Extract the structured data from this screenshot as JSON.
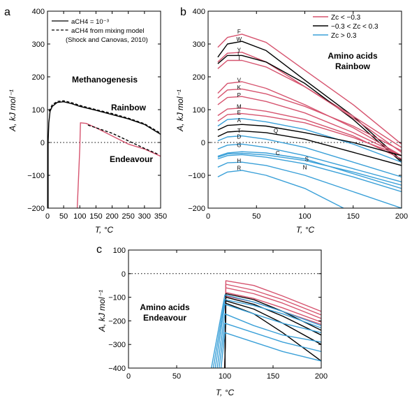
{
  "colors": {
    "red": "#d6546f",
    "black": "#000000",
    "blue": "#3aa0d8"
  },
  "chart_data": [
    {
      "panel": "a",
      "type": "line",
      "title": "Methanogenesis",
      "xlabel": "T, °C",
      "ylabel": "A, kJ mol⁻¹",
      "xlim": [
        0,
        350
      ],
      "ylim": [
        -200,
        400
      ],
      "xticks": [
        0,
        50,
        100,
        150,
        200,
        250,
        300,
        350
      ],
      "yticks": [
        -200,
        -100,
        0,
        100,
        200,
        300,
        400
      ],
      "zero_line": "dotted",
      "legend": {
        "placement": "top-left",
        "entries": [
          {
            "label": "aCH4 = 10⁻³",
            "style": "solid"
          },
          {
            "label": "aCH4 from mixing model",
            "style": "dashed"
          },
          {
            "label": "(Shock and Canovas, 2010)",
            "style": "none"
          }
        ]
      },
      "labels": [
        {
          "text": "Rainbow",
          "x": 225,
          "y": 157
        },
        {
          "text": "Endeavour",
          "x": 255,
          "y": -56
        }
      ],
      "series": [
        {
          "name": "Rainbow",
          "color": "black",
          "style": "solid",
          "x": [
            2,
            2,
            4,
            8,
            15,
            30,
            50,
            75,
            100,
            150,
            200,
            250,
            300,
            350
          ],
          "y": [
            -200,
            0,
            60,
            95,
            110,
            122,
            124,
            118,
            110,
            98,
            85,
            72,
            55,
            25
          ]
        },
        {
          "name": "Rainbow mixing",
          "color": "black",
          "style": "dashed",
          "x": [
            5,
            15,
            30,
            50,
            75,
            100,
            150,
            200,
            250,
            300,
            350
          ],
          "y": [
            95,
            115,
            125,
            127,
            121,
            113,
            100,
            88,
            74,
            57,
            28
          ]
        },
        {
          "name": "Endeavour",
          "color": "red",
          "style": "solid",
          "x": [
            92,
            100,
            102,
            120,
            150,
            200,
            250,
            300,
            350
          ],
          "y": [
            -200,
            -15,
            60,
            58,
            45,
            20,
            -5,
            -20,
            -42
          ]
        },
        {
          "name": "Endeavour mixing",
          "color": "black",
          "style": "dashed",
          "x": [
            125,
            150,
            200,
            250,
            300,
            340
          ],
          "y": [
            53,
            45,
            28,
            5,
            -18,
            -35
          ]
        }
      ]
    },
    {
      "panel": "b",
      "type": "line",
      "title": "Amino acids Rainbow",
      "title_lines": [
        "Amino acids",
        "Rainbow"
      ],
      "xlabel": "T, °C",
      "ylabel": "A, kJ mol⁻¹",
      "xlim": [
        0,
        200
      ],
      "ylim": [
        -200,
        400
      ],
      "xticks": [
        0,
        50,
        100,
        150,
        200
      ],
      "yticks": [
        -200,
        -100,
        0,
        100,
        200,
        300,
        400
      ],
      "zero_line": "dotted",
      "legend": {
        "placement": "top-right",
        "entries": [
          {
            "label": "Zc < −0.3",
            "color": "red"
          },
          {
            "label": "−0.3 < Zc < 0.3",
            "color": "black"
          },
          {
            "label": "Zc > 0.3",
            "color": "blue"
          }
        ]
      },
      "series": [
        {
          "name": "F",
          "color": "red",
          "x": [
            10,
            20,
            35,
            60,
            100,
            150,
            200
          ],
          "y": [
            290,
            320,
            330,
            305,
            220,
            115,
            -5
          ],
          "label_at": [
            32,
            338
          ]
        },
        {
          "name": "W",
          "color": "black",
          "x": [
            10,
            20,
            35,
            60,
            100,
            150,
            200
          ],
          "y": [
            260,
            300,
            308,
            280,
            190,
            80,
            -55
          ],
          "label_at": [
            32,
            315
          ]
        },
        {
          "name": "Y",
          "color": "red",
          "x": [
            10,
            20,
            35,
            60,
            100,
            150,
            200
          ],
          "y": [
            245,
            272,
            275,
            245,
            170,
            80,
            -15
          ],
          "label_at": [
            32,
            282
          ]
        },
        {
          "name": "L",
          "color": "black",
          "x": [
            10,
            20,
            35,
            60,
            100,
            150,
            200
          ],
          "y": [
            240,
            265,
            265,
            245,
            180,
            70,
            -60
          ],
          "label_at": [
            32,
            270
          ]
        },
        {
          "name": "I",
          "color": "red",
          "x": [
            10,
            20,
            35,
            60,
            100,
            150,
            200
          ],
          "y": [
            225,
            250,
            250,
            230,
            170,
            75,
            -30
          ],
          "label_at": [
            32,
            257
          ]
        },
        {
          "name": "V",
          "color": "red",
          "x": [
            10,
            20,
            35,
            60,
            100,
            150,
            200
          ],
          "y": [
            150,
            180,
            185,
            165,
            115,
            45,
            -40
          ],
          "label_at": [
            32,
            190
          ]
        },
        {
          "name": "K",
          "color": "red",
          "x": [
            10,
            20,
            35,
            60,
            100,
            150,
            200
          ],
          "y": [
            135,
            160,
            163,
            148,
            110,
            50,
            -25
          ],
          "label_at": [
            32,
            168
          ]
        },
        {
          "name": "P",
          "color": "red",
          "x": [
            10,
            20,
            35,
            60,
            100,
            150,
            200
          ],
          "y": [
            115,
            137,
            140,
            125,
            90,
            30,
            -40
          ],
          "label_at": [
            32,
            145
          ]
        },
        {
          "name": "M",
          "color": "red",
          "x": [
            10,
            20,
            35,
            60,
            100,
            150,
            200
          ],
          "y": [
            82,
            102,
            105,
            95,
            70,
            20,
            -50
          ],
          "label_at": [
            32,
            110
          ]
        },
        {
          "name": "E",
          "color": "red",
          "x": [
            10,
            20,
            35,
            60,
            100,
            150,
            200
          ],
          "y": [
            65,
            85,
            88,
            80,
            60,
            15,
            -40
          ],
          "label_at": [
            32,
            92
          ]
        },
        {
          "name": "A",
          "color": "blue",
          "x": [
            10,
            20,
            35,
            60,
            100,
            150,
            200
          ],
          "y": [
            50,
            70,
            73,
            63,
            40,
            -5,
            -60
          ],
          "label_at": [
            32,
            68
          ]
        },
        {
          "name": "T",
          "color": "black",
          "x": [
            10,
            20,
            35,
            60,
            100,
            150,
            200
          ],
          "y": [
            38,
            52,
            55,
            50,
            30,
            0,
            -40
          ],
          "label_at": [
            32,
            36
          ]
        },
        {
          "name": "Q",
          "color": "black",
          "x": [
            10,
            20,
            35,
            60,
            100,
            150,
            200
          ],
          "y": [
            18,
            32,
            35,
            30,
            10,
            -30,
            -70
          ],
          "label_at": [
            70,
            36
          ]
        },
        {
          "name": "D",
          "color": "blue",
          "x": [
            10,
            20,
            35,
            60,
            100,
            150,
            200
          ],
          "y": [
            5,
            17,
            20,
            10,
            -15,
            -60,
            -105
          ],
          "label_at": [
            32,
            18
          ]
        },
        {
          "name": "G",
          "color": "blue",
          "x": [
            10,
            20,
            35,
            60,
            100,
            150,
            200
          ],
          "y": [
            -20,
            -8,
            -5,
            -15,
            -40,
            -80,
            -120
          ],
          "label_at": [
            32,
            -7
          ]
        },
        {
          "name": "C",
          "color": "blue",
          "x": [
            10,
            20,
            35,
            60,
            100,
            150,
            200
          ],
          "y": [
            -45,
            -35,
            -33,
            -38,
            -55,
            -90,
            -130
          ],
          "label_at": [
            72,
            -32
          ]
        },
        {
          "name": "S",
          "color": "blue",
          "x": [
            10,
            20,
            35,
            60,
            100,
            150,
            200
          ],
          "y": [
            -42,
            -32,
            -28,
            -32,
            -50,
            -95,
            -140
          ],
          "label_at": [
            102,
            -50
          ]
        },
        {
          "name": "N",
          "color": "blue",
          "x": [
            10,
            20,
            35,
            60,
            100,
            150,
            200
          ],
          "y": [
            -50,
            -40,
            -37,
            -45,
            -65,
            -105,
            -150
          ],
          "label_at": [
            100,
            -75
          ]
        },
        {
          "name": "H",
          "color": "blue",
          "x": [
            10,
            20,
            35,
            60,
            100,
            150,
            200
          ],
          "y": [
            -75,
            -62,
            -60,
            -70,
            -100,
            -150,
            -200
          ],
          "label_at": [
            32,
            -55
          ]
        },
        {
          "name": "R",
          "color": "blue",
          "x": [
            10,
            20,
            35,
            60,
            100,
            140
          ],
          "y": [
            -105,
            -90,
            -85,
            -100,
            -140,
            -200
          ],
          "label_at": [
            32,
            -78
          ]
        }
      ]
    },
    {
      "panel": "c",
      "type": "line",
      "title": "Amino acids Endeavour",
      "title_lines": [
        "Amino acids",
        "Endeavour"
      ],
      "xlabel": "T, °C",
      "ylabel": "A, kJ mol⁻¹",
      "xlim": [
        0,
        200
      ],
      "ylim": [
        -400,
        100
      ],
      "xticks": [
        0,
        50,
        100,
        150,
        200
      ],
      "yticks": [
        -400,
        -300,
        -200,
        -100,
        0,
        100
      ],
      "zero_line": "dotted",
      "series": [
        {
          "color": "red",
          "x": [
            100,
            101,
            130,
            160,
            200
          ],
          "y": [
            -400,
            -30,
            -50,
            -95,
            -160
          ]
        },
        {
          "color": "red",
          "x": [
            100,
            101,
            130,
            160,
            200
          ],
          "y": [
            -400,
            -45,
            -70,
            -110,
            -175
          ]
        },
        {
          "color": "red",
          "x": [
            100,
            101,
            130,
            160,
            200
          ],
          "y": [
            -400,
            -60,
            -85,
            -125,
            -190
          ]
        },
        {
          "color": "red",
          "x": [
            100,
            101,
            130,
            160,
            200
          ],
          "y": [
            -400,
            -80,
            -105,
            -145,
            -205
          ]
        },
        {
          "color": "red",
          "x": [
            100,
            101,
            130,
            160,
            200
          ],
          "y": [
            -400,
            -95,
            -120,
            -160,
            -215
          ]
        },
        {
          "color": "black",
          "x": [
            100,
            101,
            130,
            160,
            200
          ],
          "y": [
            -400,
            -85,
            -110,
            -160,
            -240
          ]
        },
        {
          "color": "black",
          "x": [
            100,
            101,
            130,
            160,
            200
          ],
          "y": [
            -400,
            -100,
            -130,
            -180,
            -260
          ]
        },
        {
          "color": "black",
          "x": [
            100,
            101,
            130,
            160,
            200
          ],
          "y": [
            -400,
            -115,
            -150,
            -210,
            -300
          ]
        },
        {
          "color": "black",
          "x": [
            100,
            101,
            130,
            160,
            200
          ],
          "y": [
            -400,
            -125,
            -170,
            -250,
            -370
          ]
        },
        {
          "color": "blue",
          "x": [
            86,
            100,
            130,
            160,
            200
          ],
          "y": [
            -400,
            -90,
            -120,
            -160,
            -220
          ]
        },
        {
          "color": "blue",
          "x": [
            88,
            100,
            130,
            160,
            200
          ],
          "y": [
            -400,
            -110,
            -135,
            -170,
            -230
          ]
        },
        {
          "color": "blue",
          "x": [
            90,
            100,
            130,
            160,
            200
          ],
          "y": [
            -400,
            -130,
            -170,
            -210,
            -250
          ]
        },
        {
          "color": "blue",
          "x": [
            92,
            100,
            130,
            160,
            200
          ],
          "y": [
            -400,
            -170,
            -220,
            -260,
            -290
          ]
        },
        {
          "color": "blue",
          "x": [
            94,
            100,
            130,
            160,
            200
          ],
          "y": [
            -400,
            -210,
            -250,
            -290,
            -330
          ]
        },
        {
          "color": "blue",
          "x": [
            96,
            100,
            130,
            160,
            200
          ],
          "y": [
            -400,
            -250,
            -290,
            -330,
            -370
          ]
        }
      ]
    }
  ],
  "panel_letters": [
    "a",
    "b",
    "c"
  ]
}
